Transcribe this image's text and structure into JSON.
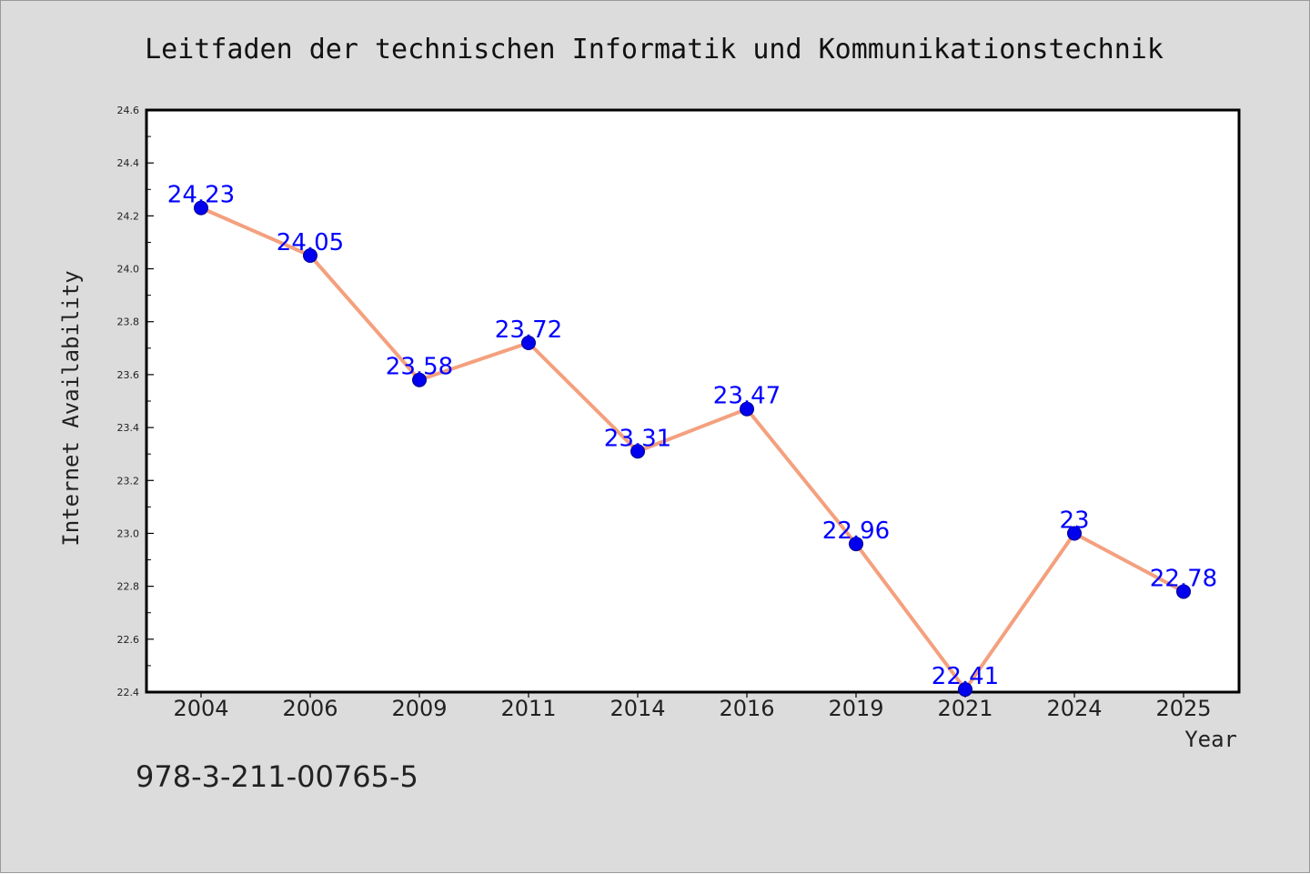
{
  "chart_data": {
    "type": "line",
    "title": "Leitfaden der technischen Informatik und Kommunikationstechnik",
    "xlabel": "Year",
    "ylabel": "Internet Availability",
    "categories": [
      "2004",
      "2006",
      "2009",
      "2011",
      "2014",
      "2016",
      "2019",
      "2021",
      "2024",
      "2025"
    ],
    "series": [
      {
        "values": [
          24.23,
          24.05,
          23.58,
          23.72,
          23.31,
          23.47,
          22.96,
          22.41,
          23.0,
          22.78
        ],
        "data_labels": [
          "24.23",
          "24.05",
          "23.58",
          "23.72",
          "23.31",
          "23.47",
          "22.96",
          "22.41",
          "23",
          "22.78"
        ]
      }
    ],
    "ylim": [
      22.4,
      24.6
    ],
    "yticks": [
      "22.4",
      "22.6",
      "22.8",
      "23.0",
      "23.2",
      "23.4",
      "23.6",
      "23.8",
      "24.0",
      "24.2",
      "24.4",
      "24.6"
    ],
    "grid": false,
    "legend": "none",
    "colors": {
      "line": "#f4a07e",
      "marker": "#0000ee",
      "data_label": "#0000ff",
      "figure_background": "#dcdcdc",
      "plot_background": "#ffffff"
    }
  },
  "footer": {
    "isbn": "978-3-211-00765-5"
  }
}
